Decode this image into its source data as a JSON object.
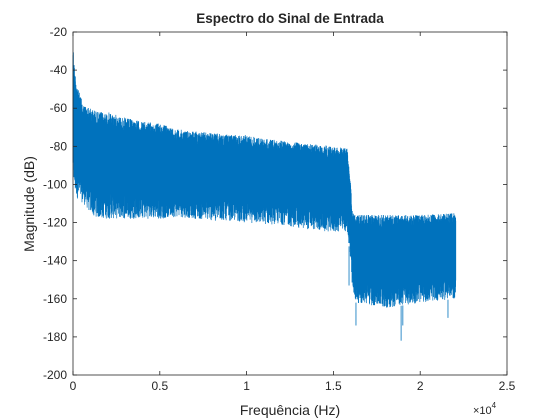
{
  "chart_data": {
    "type": "line",
    "title": "Espectro do Sinal de Entrada",
    "xlabel": "Frequência (Hz)",
    "ylabel": "Magnitude (dB)",
    "x_exponent_label": "×10",
    "x_exponent": "4",
    "xlim": [
      0,
      25000
    ],
    "ylim": [
      -200,
      -20
    ],
    "xticks": [
      0,
      5000,
      10000,
      15000,
      20000,
      25000
    ],
    "xtick_labels": [
      "0",
      "0.5",
      "1",
      "1.5",
      "2",
      "2.5"
    ],
    "yticks": [
      -200,
      -180,
      -160,
      -140,
      -120,
      -100,
      -80,
      -60,
      -40,
      -20
    ],
    "ytick_labels": [
      "-200",
      "-180",
      "-160",
      "-140",
      "-120",
      "-100",
      "-80",
      "-60",
      "-40",
      "-20"
    ],
    "grid": false,
    "series": [
      {
        "color": "#0072bd",
        "envelope_x": [
          0,
          100,
          300,
          600,
          1000,
          1500,
          2000,
          3000,
          4000,
          5000,
          6000,
          7000,
          8000,
          9000,
          10000,
          11000,
          12000,
          13000,
          14000,
          15000,
          15800,
          16000,
          16100,
          16300,
          18000,
          20000,
          22050
        ],
        "upper_db": [
          -25,
          -40,
          -50,
          -58,
          -60,
          -62,
          -62,
          -65,
          -67,
          -68,
          -71,
          -72,
          -73,
          -74,
          -74,
          -76,
          -77,
          -78,
          -79,
          -80,
          -81,
          -100,
          -115,
          -116,
          -116,
          -116,
          -115
        ],
        "lower_db": [
          -95,
          -105,
          -108,
          -110,
          -115,
          -118,
          -118,
          -118,
          -118,
          -118,
          -117,
          -118,
          -119,
          -119,
          -120,
          -121,
          -121,
          -123,
          -124,
          -125,
          -125,
          -140,
          -158,
          -162,
          -165,
          -162,
          -160
        ],
        "spikes": [
          {
            "x": 1200,
            "y": -112
          },
          {
            "x": 3500,
            "y": -115
          },
          {
            "x": 5200,
            "y": -114
          },
          {
            "x": 8200,
            "y": -116
          },
          {
            "x": 14500,
            "y": -124
          },
          {
            "x": 15900,
            "y": -153
          },
          {
            "x": 16300,
            "y": -174
          },
          {
            "x": 18900,
            "y": -182
          },
          {
            "x": 19000,
            "y": -174
          },
          {
            "x": 21600,
            "y": -170
          }
        ]
      }
    ]
  }
}
